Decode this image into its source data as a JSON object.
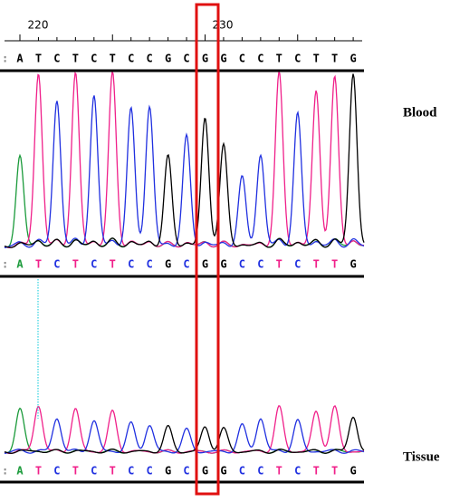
{
  "ruler": {
    "labels": [
      "220",
      "230"
    ]
  },
  "rows": [
    {
      "bases": [
        "A",
        "T",
        "C",
        "T",
        "C",
        "T",
        "C",
        "C",
        "G",
        "C",
        "G",
        "G",
        "C",
        "C",
        "T",
        "C",
        "T",
        "T",
        "G"
      ]
    },
    {
      "bases": [
        "A",
        "T",
        "C",
        "T",
        "C",
        "T",
        "C",
        "C",
        "G",
        "C",
        "G",
        "G",
        "C",
        "C",
        "T",
        "C",
        "T",
        "T",
        "G"
      ]
    },
    {
      "bases": [
        "A",
        "T",
        "C",
        "T",
        "C",
        "T",
        "C",
        "C",
        "G",
        "C",
        "G",
        "G",
        "C",
        "C",
        "T",
        "C",
        "T",
        "T",
        "G"
      ]
    }
  ],
  "samples": [
    "Blood",
    "Tissue"
  ]
}
